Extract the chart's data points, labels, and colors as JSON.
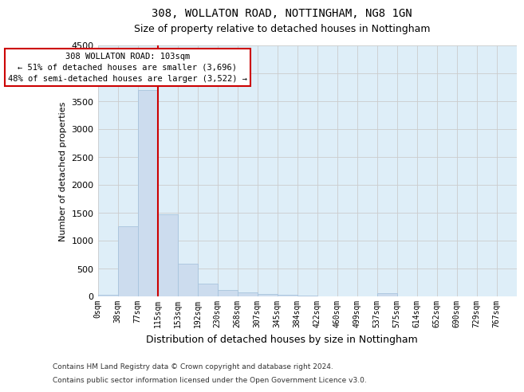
{
  "title": "308, WOLLATON ROAD, NOTTINGHAM, NG8 1GN",
  "subtitle": "Size of property relative to detached houses in Nottingham",
  "xlabel": "Distribution of detached houses by size in Nottingham",
  "ylabel": "Number of detached properties",
  "footer_line1": "Contains HM Land Registry data © Crown copyright and database right 2024.",
  "footer_line2": "Contains public sector information licensed under the Open Government Licence v3.0.",
  "bar_labels": [
    "0sqm",
    "38sqm",
    "77sqm",
    "115sqm",
    "153sqm",
    "192sqm",
    "230sqm",
    "268sqm",
    "307sqm",
    "345sqm",
    "384sqm",
    "422sqm",
    "460sqm",
    "499sqm",
    "537sqm",
    "575sqm",
    "614sqm",
    "652sqm",
    "690sqm",
    "729sqm",
    "767sqm"
  ],
  "bar_values": [
    25,
    1260,
    3700,
    1470,
    580,
    230,
    110,
    75,
    50,
    30,
    10,
    0,
    0,
    0,
    55,
    0,
    0,
    0,
    0,
    0,
    0
  ],
  "bar_color": "#ccdcee",
  "bar_edge_color": "#a8c4dd",
  "grid_color": "#cccccc",
  "vline_x": 3.0,
  "vline_color": "#cc0000",
  "annotation_text": "308 WOLLATON ROAD: 103sqm\n← 51% of detached houses are smaller (3,696)\n48% of semi-detached houses are larger (3,522) →",
  "annotation_box_color": "#cc0000",
  "ylim": [
    0,
    4500
  ],
  "yticks": [
    0,
    500,
    1000,
    1500,
    2000,
    2500,
    3000,
    3500,
    4000,
    4500
  ],
  "background_color": "#deeef8",
  "title_fontsize": 10,
  "subtitle_fontsize": 9
}
